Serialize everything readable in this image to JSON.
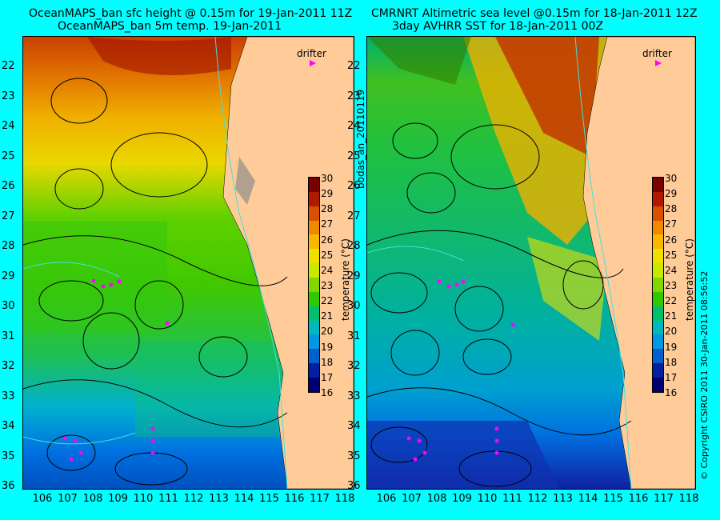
{
  "left_panel": {
    "title_line1": "OceanMAPS_ban sfc height @ 0.15m for 19-Jan-2011 11Z",
    "title_line2": "OceanMAPS_ban 5m temp. 19-Jan-2011",
    "legend_label": "drifter"
  },
  "right_panel": {
    "title_line1": "CMRNRT Altimetric sea level  @0.15m  for 18-Jan-2011 12Z",
    "title_line2": "3day AVHRR SST for 18-Jan-2011 00Z",
    "legend_label": "drifter"
  },
  "side_label": "bodas_an_20110119",
  "copyright": "© Copyright CSIRO 2011   30-Jan-2011 08:56:52",
  "latitude_ticks": [
    "22",
    "23",
    "24",
    "25",
    "26",
    "27",
    "28",
    "29",
    "30",
    "31",
    "32",
    "33",
    "34",
    "35",
    "36"
  ],
  "longitude_ticks": [
    "106",
    "107",
    "108",
    "109",
    "110",
    "111",
    "112",
    "113",
    "114",
    "115",
    "116",
    "117",
    "118"
  ],
  "colorbar": {
    "label": "temperature (°C)",
    "ticks": [
      "30",
      "29",
      "28",
      "27",
      "26",
      "25",
      "24",
      "23",
      "22",
      "21",
      "20",
      "19",
      "18",
      "17",
      "16"
    ],
    "colors": [
      "#7a0000",
      "#b01a00",
      "#d85000",
      "#f08800",
      "#f8b800",
      "#f0e000",
      "#c8e800",
      "#80d800",
      "#30c800",
      "#00c070",
      "#00b8c0",
      "#0098e0",
      "#0060d0",
      "#0020a0",
      "#000070"
    ]
  },
  "colors": {
    "background": "#00ffff",
    "land": "#ffcc99",
    "drifter": "#ff00ff"
  }
}
